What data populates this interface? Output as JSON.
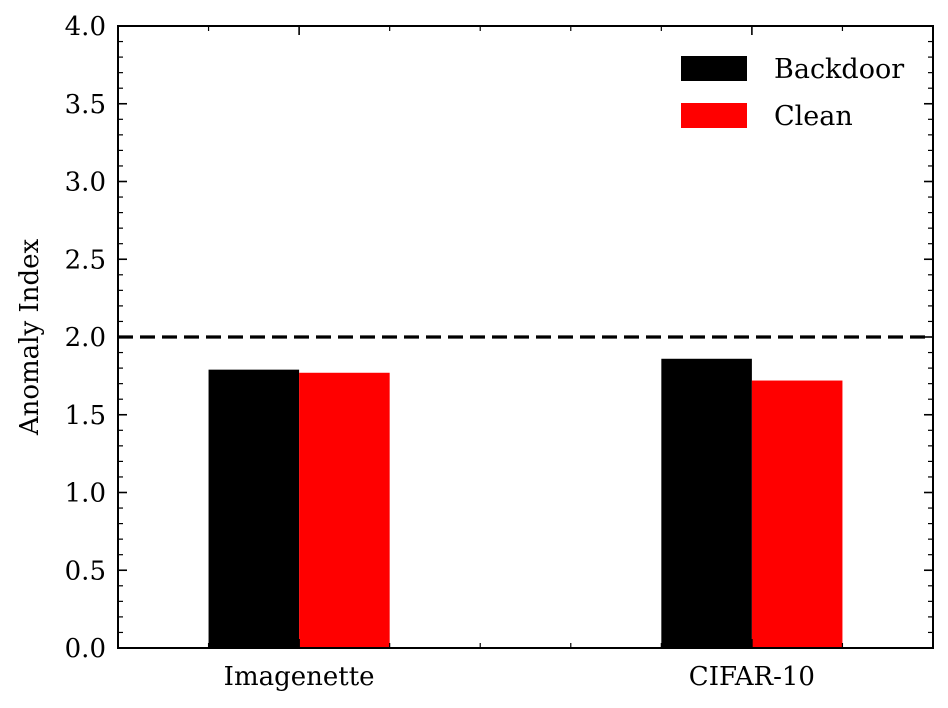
{
  "chart_data": {
    "type": "bar",
    "categories": [
      "Imagenette",
      "CIFAR-10"
    ],
    "series": [
      {
        "name": "Backdoor",
        "values": [
          1.79,
          1.86
        ],
        "color": "#000000"
      },
      {
        "name": "Clean",
        "values": [
          1.77,
          1.72
        ],
        "color": "#ff0000"
      }
    ],
    "title": "",
    "xlabel": "",
    "ylabel": "Anomaly Index",
    "ylim": [
      0,
      4.0
    ],
    "yticks": [
      "0.0",
      "0.5",
      "1.0",
      "1.5",
      "2.0",
      "2.5",
      "3.0",
      "3.5",
      "4.0"
    ],
    "threshold": {
      "value": 2.0,
      "style": "dashed",
      "color": "#000000"
    },
    "legend": "top-right",
    "grid": false
  }
}
